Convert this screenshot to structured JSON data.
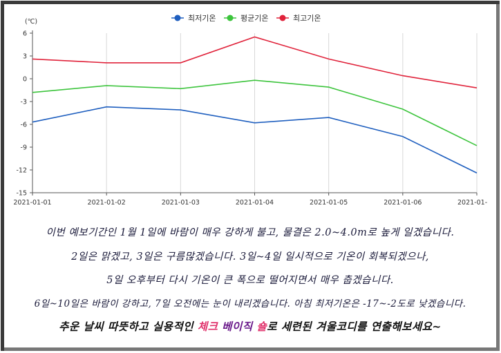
{
  "chart_data": {
    "type": "line",
    "unit_label": "(℃)",
    "categories": [
      "2021-01-01",
      "2021-01-02",
      "2021-01-03",
      "2021-01-04",
      "2021-01-05",
      "2021-01-06",
      "2021-01-"
    ],
    "ylim": [
      -15,
      6
    ],
    "yticks": [
      6,
      3,
      0,
      -3,
      -6,
      -9,
      -12,
      -15
    ],
    "grid": "vertical",
    "legend_position": "top-center",
    "series": [
      {
        "name": "최저기온",
        "color": "#1f5fbf",
        "values": [
          -5.7,
          -3.7,
          -4.1,
          -5.8,
          -5.1,
          -7.6,
          -12.4
        ]
      },
      {
        "name": "평균기온",
        "color": "#3cc43c",
        "values": [
          -1.8,
          -0.9,
          -1.3,
          -0.2,
          -1.1,
          -4.0,
          -8.8
        ]
      },
      {
        "name": "최고기온",
        "color": "#e0223a",
        "values": [
          2.6,
          2.1,
          2.1,
          5.5,
          2.6,
          0.4,
          -1.2
        ]
      }
    ]
  },
  "caption": {
    "line1": "이번 예보기간인 1월 1일에 바람이 매우 강하게 불고, 물결은 2.0~4.0m로 높게 일겠습니다.",
    "line2": "2일은 맑겠고, 3일은 구름많겠습니다. 3일~4일 일시적으로 기온이 회복되겠으나,",
    "line3": "5일 오후부터 다시 기온이 큰 폭으로 떨어지면서 매우 춥겠습니다.",
    "line4": "6일~10일은 바람이 강하고, 7일 오전에는 눈이 내리겠습니다. 아침 최저기온은 -17~-2도로 낮겠습니다.",
    "line5_a": "추운 날씨 따뜻하고 실용적인 ",
    "line5_b": "체크 ",
    "line5_c": "베이직 ",
    "line5_d": "숄",
    "line5_e": "로 세련된 겨울코디를 연출해보세요~"
  }
}
